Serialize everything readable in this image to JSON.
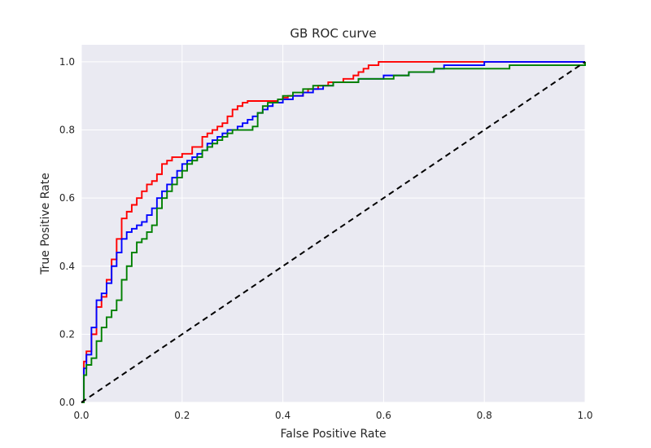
{
  "chart_data": {
    "type": "line",
    "title": "GB ROC curve",
    "xlabel": "False Positive Rate",
    "ylabel": "True Positive Rate",
    "xlim": [
      0.0,
      1.0
    ],
    "ylim": [
      0.0,
      1.05
    ],
    "xticks": [
      0.0,
      0.2,
      0.4,
      0.6,
      0.8,
      1.0
    ],
    "yticks": [
      0.0,
      0.2,
      0.4,
      0.6,
      0.8,
      1.0
    ],
    "xtick_labels": [
      "0.0",
      "0.2",
      "0.4",
      "0.6",
      "0.8",
      "1.0"
    ],
    "ytick_labels": [
      "0.0",
      "0.2",
      "0.4",
      "0.6",
      "0.8",
      "1.0"
    ],
    "grid": true,
    "legend": "none",
    "background_color": "#eaeaf2",
    "grid_color": "#ffffff",
    "series": [
      {
        "color": "#ff0000",
        "step": true,
        "x": [
          0.0,
          0.005,
          0.01,
          0.02,
          0.03,
          0.04,
          0.05,
          0.06,
          0.07,
          0.08,
          0.09,
          0.1,
          0.11,
          0.12,
          0.13,
          0.14,
          0.15,
          0.16,
          0.17,
          0.18,
          0.2,
          0.22,
          0.24,
          0.25,
          0.26,
          0.27,
          0.28,
          0.29,
          0.3,
          0.31,
          0.32,
          0.33,
          0.34,
          0.35,
          0.37,
          0.39,
          0.4,
          0.41,
          0.42,
          0.44,
          0.45,
          0.47,
          0.49,
          0.5,
          0.52,
          0.54,
          0.55,
          0.56,
          0.57,
          0.59,
          0.6,
          0.7,
          0.85,
          1.0
        ],
        "y": [
          0.0,
          0.12,
          0.15,
          0.2,
          0.28,
          0.31,
          0.36,
          0.42,
          0.48,
          0.54,
          0.56,
          0.58,
          0.6,
          0.62,
          0.64,
          0.65,
          0.67,
          0.7,
          0.71,
          0.72,
          0.73,
          0.75,
          0.78,
          0.79,
          0.8,
          0.81,
          0.82,
          0.84,
          0.86,
          0.87,
          0.88,
          0.885,
          0.885,
          0.885,
          0.885,
          0.89,
          0.895,
          0.9,
          0.9,
          0.91,
          0.92,
          0.93,
          0.94,
          0.94,
          0.95,
          0.96,
          0.97,
          0.98,
          0.99,
          1.0,
          1.0,
          1.0,
          1.0,
          1.0
        ]
      },
      {
        "color": "#0000ff",
        "step": true,
        "x": [
          0.0,
          0.005,
          0.01,
          0.02,
          0.03,
          0.04,
          0.05,
          0.06,
          0.07,
          0.08,
          0.09,
          0.1,
          0.11,
          0.12,
          0.13,
          0.14,
          0.15,
          0.16,
          0.17,
          0.18,
          0.19,
          0.2,
          0.21,
          0.22,
          0.23,
          0.24,
          0.25,
          0.26,
          0.27,
          0.28,
          0.29,
          0.3,
          0.31,
          0.32,
          0.33,
          0.34,
          0.35,
          0.36,
          0.37,
          0.38,
          0.4,
          0.42,
          0.44,
          0.46,
          0.48,
          0.5,
          0.55,
          0.6,
          0.65,
          0.7,
          0.72,
          0.8,
          0.9,
          1.0
        ],
        "y": [
          0.0,
          0.1,
          0.14,
          0.22,
          0.3,
          0.32,
          0.35,
          0.4,
          0.44,
          0.48,
          0.5,
          0.51,
          0.52,
          0.53,
          0.55,
          0.57,
          0.6,
          0.62,
          0.64,
          0.66,
          0.68,
          0.7,
          0.71,
          0.72,
          0.73,
          0.74,
          0.76,
          0.77,
          0.78,
          0.79,
          0.8,
          0.8,
          0.81,
          0.82,
          0.83,
          0.84,
          0.85,
          0.86,
          0.87,
          0.88,
          0.89,
          0.9,
          0.91,
          0.92,
          0.93,
          0.94,
          0.95,
          0.96,
          0.97,
          0.98,
          0.99,
          1.0,
          1.0,
          1.0
        ]
      },
      {
        "color": "#008000",
        "step": true,
        "x": [
          0.0,
          0.005,
          0.01,
          0.02,
          0.03,
          0.04,
          0.05,
          0.06,
          0.07,
          0.08,
          0.09,
          0.1,
          0.11,
          0.12,
          0.13,
          0.14,
          0.15,
          0.16,
          0.17,
          0.18,
          0.19,
          0.2,
          0.21,
          0.22,
          0.23,
          0.24,
          0.25,
          0.26,
          0.27,
          0.28,
          0.29,
          0.3,
          0.31,
          0.32,
          0.33,
          0.34,
          0.35,
          0.36,
          0.37,
          0.39,
          0.4,
          0.42,
          0.44,
          0.46,
          0.5,
          0.55,
          0.6,
          0.62,
          0.65,
          0.7,
          0.85,
          1.0
        ],
        "y": [
          0.0,
          0.08,
          0.11,
          0.13,
          0.18,
          0.22,
          0.25,
          0.27,
          0.3,
          0.36,
          0.4,
          0.44,
          0.47,
          0.48,
          0.5,
          0.52,
          0.57,
          0.6,
          0.62,
          0.64,
          0.66,
          0.68,
          0.7,
          0.71,
          0.72,
          0.74,
          0.75,
          0.76,
          0.77,
          0.78,
          0.79,
          0.8,
          0.8,
          0.8,
          0.8,
          0.81,
          0.85,
          0.87,
          0.88,
          0.89,
          0.9,
          0.91,
          0.92,
          0.93,
          0.94,
          0.95,
          0.95,
          0.96,
          0.97,
          0.98,
          0.99,
          1.0
        ]
      },
      {
        "color": "#000000",
        "dashed": true,
        "x": [
          0.0,
          1.0
        ],
        "y": [
          0.0,
          1.0
        ]
      }
    ]
  }
}
